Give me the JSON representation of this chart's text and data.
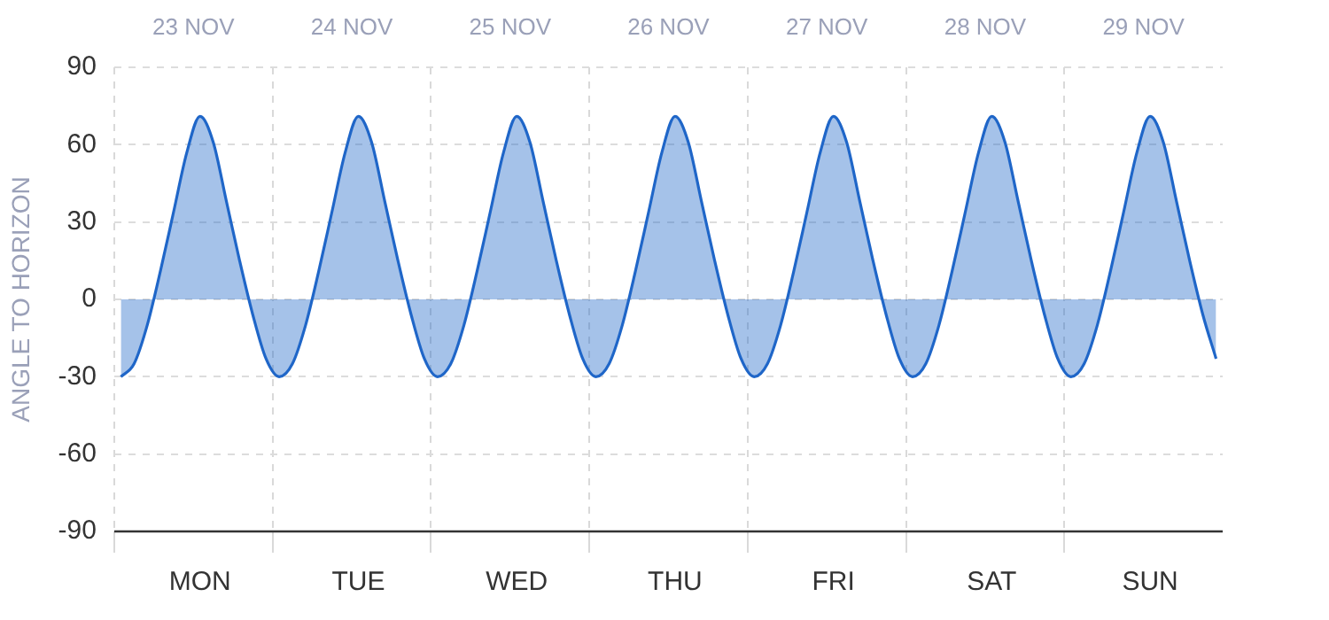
{
  "chart_data": {
    "type": "area",
    "ylabel": "ANGLE TO HORIZON",
    "color": "#1f66c8",
    "categories": [
      null,
      null,
      null,
      null,
      null,
      null,
      "MON",
      null,
      null,
      null,
      null,
      null,
      null,
      null,
      null,
      null,
      null,
      null,
      "TUE",
      null,
      null,
      null,
      null,
      null,
      null,
      null,
      null,
      null,
      null,
      null,
      "WED",
      null,
      null,
      null,
      null,
      null,
      null,
      null,
      null,
      null,
      null,
      null,
      "THU",
      null,
      null,
      null,
      null,
      null,
      null,
      null,
      null,
      null,
      null,
      null,
      "FRI",
      null,
      null,
      null,
      null,
      null,
      null,
      null,
      null,
      null,
      null,
      null,
      "SAT",
      null,
      null,
      null,
      null,
      null,
      null,
      null,
      null,
      null,
      null,
      null,
      "SUN",
      null,
      null,
      null,
      null,
      null
    ],
    "values": [
      -30,
      -25,
      -10,
      11,
      34,
      57,
      71,
      61,
      38,
      15,
      -6,
      -23,
      -30,
      -25,
      -10,
      11,
      34,
      57,
      71,
      61,
      38,
      15,
      -6,
      -23,
      -30,
      -25,
      -10,
      11,
      34,
      57,
      71,
      61,
      38,
      15,
      -6,
      -23,
      -30,
      -25,
      -10,
      11,
      34,
      57,
      71,
      61,
      38,
      15,
      -6,
      -23,
      -30,
      -25,
      -10,
      11,
      34,
      57,
      71,
      61,
      38,
      15,
      -6,
      -23,
      -30,
      -25,
      -10,
      11,
      34,
      57,
      71,
      61,
      38,
      15,
      -6,
      -23,
      -30,
      -25,
      -10,
      11,
      34,
      57,
      71,
      61,
      38,
      15,
      -6,
      -23
    ],
    "annotations": [
      "23 NOV",
      "24 NOV",
      "25 NOV",
      "26 NOV",
      "27 NOV",
      "28 NOV",
      "29 NOV"
    ],
    "ylim": [
      -90,
      90
    ],
    "yticks": [
      -90,
      -60,
      -30,
      0,
      30,
      60,
      90
    ],
    "grid": true
  }
}
